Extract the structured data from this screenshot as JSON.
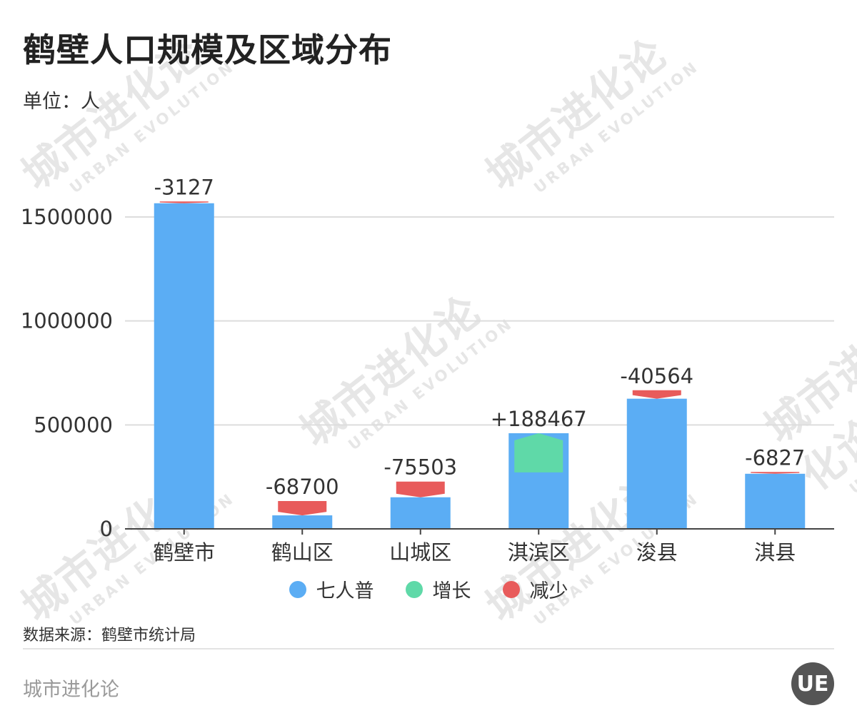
{
  "title": "鹤壁人口规模及区域分布",
  "unit": "单位：人",
  "watermark": {
    "cn": "城市进化论",
    "en": "URBAN EVOLUTION"
  },
  "colors": {
    "base": "#5badf4",
    "increase": "#5fd9a8",
    "decrease": "#e85b5b",
    "grid": "#dddddd",
    "axis": "#444444"
  },
  "chart_data": {
    "type": "bar",
    "categories": [
      "鹤壁市",
      "鹤山区",
      "山城区",
      "淇滨区",
      "浚县",
      "淇县"
    ],
    "series": [
      {
        "name": "七人普",
        "values": [
          1565973,
          65000,
          152000,
          460000,
          626000,
          265000
        ]
      }
    ],
    "changes": [
      -3127,
      -68700,
      -75503,
      188467,
      -40564,
      -6827
    ],
    "change_labels": [
      "-3127",
      "-68700",
      "-75503",
      "+188467",
      "-40564",
      "-6827"
    ],
    "yticks": [
      0,
      500000,
      1000000,
      1500000
    ],
    "ylim": [
      0,
      1700000
    ],
    "grid": true,
    "legend": {
      "position": "bottom",
      "items": [
        {
          "label": "七人普",
          "color": "#5badf4"
        },
        {
          "label": "增长",
          "color": "#5fd9a8"
        },
        {
          "label": "减少",
          "color": "#e85b5b"
        }
      ]
    }
  },
  "source": "数据来源：鹤壁市统计局",
  "footer": {
    "brand": "城市进化论",
    "logo": "UE"
  }
}
